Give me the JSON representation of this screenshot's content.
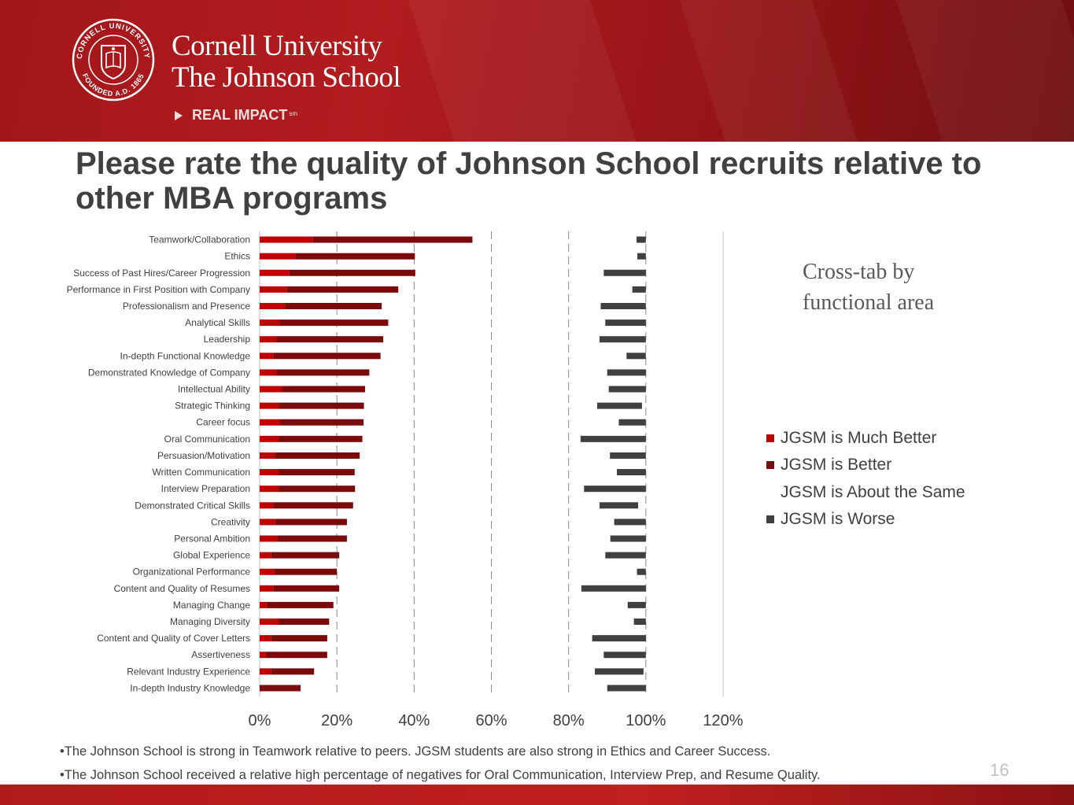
{
  "header": {
    "university": "Cornell University",
    "school": "The Johnson School",
    "tagline": "REAL IMPACT",
    "tagline_mark": "sm",
    "seal_text_top": "CORNELL UNIVERSITY",
    "seal_text_bottom": "FOUNDED A.D. 1865"
  },
  "slide": {
    "title": "Please rate the quality of Johnson School recruits relative to other MBA programs",
    "note": "Cross-tab by functional area",
    "bullets": [
      "•The Johnson School is strong in Teamwork relative to peers.  JGSM students are also strong in Ethics and Career Success.",
      "•The Johnson School received a relative high percentage of negatives for Oral Communication, Interview Prep, and Resume Quality."
    ],
    "page_number": "16"
  },
  "colors": {
    "header_red": "#a3161a",
    "much_better": "#c00000",
    "better": "#7b0a0a",
    "worse": "#404040",
    "text": "#404040"
  },
  "chart_data": {
    "type": "bar",
    "orientation": "horizontal",
    "stacked": true,
    "x_ticks": [
      "0%",
      "20%",
      "40%",
      "60%",
      "80%",
      "100%",
      "120%"
    ],
    "xlim": [
      0,
      120
    ],
    "grid": "vertical dashed",
    "legend_position": "right",
    "categories": [
      "Teamwork/Collaboration",
      "Ethics",
      "Success of Past Hires/Career Progression",
      "Performance in First Position with Company",
      "Professionalism and Presence",
      "Analytical Skills",
      "Leadership",
      "In-depth Functional Knowledge",
      "Demonstrated Knowledge of Company",
      "Intellectual Ability",
      "Strategic Thinking",
      "Career focus",
      "Oral Communication",
      "Persuasion/Motivation",
      "Written Communication",
      "Interview Preparation",
      "Demonstrated Critical Skills",
      "Creativity",
      "Personal Ambition",
      "Global Experience",
      "Organizational Performance",
      "Content and Quality of Resumes",
      "Managing Change",
      "Managing Diversity",
      "Content and Quality of Cover Letters",
      "Assertiveness",
      "Relevant Industry Experience",
      "In-depth Industry Knowledge"
    ],
    "series": [
      {
        "name": "JGSM is Much Better",
        "color": "#c00000",
        "values": [
          13.8,
          9.3,
          7.7,
          7.1,
          6.6,
          5.2,
          4.3,
          3.5,
          4.3,
          5.8,
          5.0,
          5.4,
          4.9,
          4.0,
          5.0,
          4.9,
          3.5,
          4.0,
          4.5,
          2.9,
          3.8,
          3.5,
          1.8,
          5.0,
          3.0,
          1.6,
          2.9,
          0.0
        ]
      },
      {
        "name": "JGSM is Better",
        "color": "#7b0a0a",
        "values": [
          41.3,
          30.9,
          32.6,
          28.8,
          25.0,
          28.1,
          27.7,
          27.8,
          24.1,
          21.5,
          22.0,
          21.5,
          21.7,
          21.9,
          19.6,
          19.8,
          20.7,
          18.6,
          18.1,
          17.7,
          16.2,
          17.1,
          17.3,
          13.0,
          14.5,
          15.9,
          11.2,
          10.6
        ]
      },
      {
        "name": "JGSM is About the Same",
        "color": "#ffffff",
        "values": [
          42.5,
          57.6,
          48.8,
          60.6,
          56.7,
          56.2,
          56.0,
          63.7,
          61.6,
          63.1,
          60.4,
          66.1,
          56.5,
          64.8,
          67.9,
          59.3,
          63.8,
          69.2,
          68.2,
          68.9,
          77.7,
          62.7,
          76.2,
          78.9,
          68.6,
          71.6,
          72.7,
          79.4
        ]
      },
      {
        "name": "JGSM is Worse",
        "color": "#404040",
        "values": [
          2.4,
          2.2,
          10.9,
          3.5,
          11.7,
          10.5,
          12.0,
          5.0,
          10.0,
          9.6,
          11.6,
          7.0,
          16.9,
          9.3,
          7.5,
          16.0,
          10.0,
          8.2,
          9.2,
          10.5,
          2.3,
          16.7,
          4.7,
          3.1,
          13.9,
          10.9,
          12.6,
          10.0
        ]
      }
    ]
  }
}
